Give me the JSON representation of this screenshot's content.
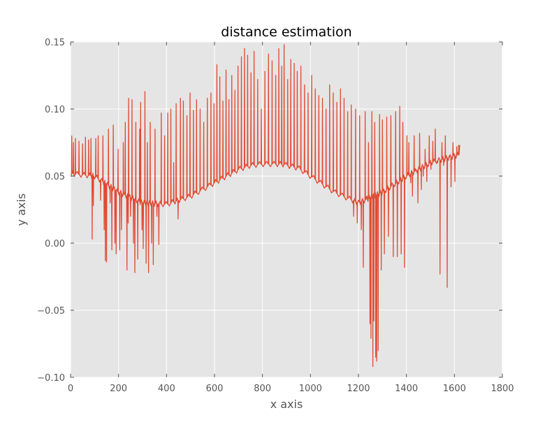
{
  "chart_data": {
    "type": "line",
    "title": "distance estimation",
    "xlabel": "x axis",
    "ylabel": "y axis",
    "xlim": [
      0,
      1800
    ],
    "ylim": [
      -0.1,
      0.15
    ],
    "x_ticks": [
      0,
      200,
      400,
      600,
      800,
      1000,
      1200,
      1400,
      1600,
      1800
    ],
    "x_tick_labels": [
      "0",
      "200",
      "400",
      "600",
      "800",
      "1000",
      "1200",
      "1400",
      "1600",
      "1800"
    ],
    "y_ticks": [
      -0.1,
      -0.05,
      0.0,
      0.05,
      0.1,
      0.15
    ],
    "y_tick_labels": [
      "−0.10",
      "−0.05",
      "0.00",
      "0.05",
      "0.10",
      "0.15"
    ],
    "grid": true,
    "legend": "none",
    "colors": {
      "series": "#E24A33",
      "plot_background": "#E5E5E5",
      "grid": "#ffffff"
    },
    "series": [
      {
        "x_start": 0,
        "x_end": 1622,
        "baseline": {
          "x": [
            0,
            100,
            200,
            300,
            400,
            500,
            600,
            700,
            750,
            800,
            880,
            950,
            1000,
            1100,
            1200,
            1300,
            1400,
            1500,
            1622
          ],
          "y": [
            0.052,
            0.05,
            0.038,
            0.03,
            0.029,
            0.035,
            0.045,
            0.055,
            0.058,
            0.059,
            0.059,
            0.056,
            0.05,
            0.038,
            0.03,
            0.038,
            0.05,
            0.06,
            0.066
          ]
        },
        "spikes": [
          {
            "x": 5,
            "y": 0.08
          },
          {
            "x": 12,
            "y": 0.075
          },
          {
            "x": 20,
            "y": 0.078
          },
          {
            "x": 35,
            "y": 0.076
          },
          {
            "x": 50,
            "y": 0.074
          },
          {
            "x": 62,
            "y": 0.079
          },
          {
            "x": 75,
            "y": 0.077
          },
          {
            "x": 85,
            "y": 0.078
          },
          {
            "x": 90,
            "y": 0.003
          },
          {
            "x": 95,
            "y": 0.028
          },
          {
            "x": 105,
            "y": 0.078
          },
          {
            "x": 115,
            "y": 0.08
          },
          {
            "x": 125,
            "y": 0.032
          },
          {
            "x": 135,
            "y": 0.08
          },
          {
            "x": 140,
            "y": 0.01
          },
          {
            "x": 145,
            "y": -0.013
          },
          {
            "x": 150,
            "y": -0.014
          },
          {
            "x": 158,
            "y": 0.085
          },
          {
            "x": 165,
            "y": 0.03
          },
          {
            "x": 172,
            "y": -0.005
          },
          {
            "x": 178,
            "y": 0.088
          },
          {
            "x": 185,
            "y": 0.0
          },
          {
            "x": 190,
            "y": -0.008
          },
          {
            "x": 198,
            "y": 0.07
          },
          {
            "x": 205,
            "y": -0.005
          },
          {
            "x": 212,
            "y": 0.01
          },
          {
            "x": 220,
            "y": 0.075
          },
          {
            "x": 228,
            "y": 0.09
          },
          {
            "x": 235,
            "y": -0.02
          },
          {
            "x": 240,
            "y": 0.015
          },
          {
            "x": 242,
            "y": 0.108
          },
          {
            "x": 250,
            "y": 0.02
          },
          {
            "x": 256,
            "y": 0.107
          },
          {
            "x": 262,
            "y": 0.0
          },
          {
            "x": 268,
            "y": -0.022
          },
          {
            "x": 272,
            "y": 0.09
          },
          {
            "x": 280,
            "y": -0.012
          },
          {
            "x": 288,
            "y": 0.085
          },
          {
            "x": 292,
            "y": 0.105
          },
          {
            "x": 298,
            "y": 0.01
          },
          {
            "x": 303,
            "y": -0.004
          },
          {
            "x": 310,
            "y": 0.113
          },
          {
            "x": 315,
            "y": -0.015
          },
          {
            "x": 320,
            "y": 0.075
          },
          {
            "x": 325,
            "y": -0.022
          },
          {
            "x": 332,
            "y": 0.09
          },
          {
            "x": 338,
            "y": 0.0
          },
          {
            "x": 345,
            "y": -0.016
          },
          {
            "x": 352,
            "y": 0.085
          },
          {
            "x": 360,
            "y": 0.02
          },
          {
            "x": 368,
            "y": -0.001
          },
          {
            "x": 378,
            "y": 0.097
          },
          {
            "x": 392,
            "y": 0.08
          },
          {
            "x": 405,
            "y": 0.097
          },
          {
            "x": 418,
            "y": 0.1
          },
          {
            "x": 430,
            "y": 0.06
          },
          {
            "x": 440,
            "y": 0.104
          },
          {
            "x": 448,
            "y": 0.018
          },
          {
            "x": 458,
            "y": 0.108
          },
          {
            "x": 470,
            "y": 0.106
          },
          {
            "x": 485,
            "y": 0.095
          },
          {
            "x": 498,
            "y": 0.112
          },
          {
            "x": 512,
            "y": 0.099
          },
          {
            "x": 525,
            "y": 0.107
          },
          {
            "x": 540,
            "y": 0.1
          },
          {
            "x": 555,
            "y": 0.09
          },
          {
            "x": 570,
            "y": 0.108
          },
          {
            "x": 585,
            "y": 0.112
          },
          {
            "x": 598,
            "y": 0.104
          },
          {
            "x": 610,
            "y": 0.133
          },
          {
            "x": 622,
            "y": 0.124
          },
          {
            "x": 635,
            "y": 0.106
          },
          {
            "x": 648,
            "y": 0.129
          },
          {
            "x": 660,
            "y": 0.107
          },
          {
            "x": 672,
            "y": 0.125
          },
          {
            "x": 685,
            "y": 0.114
          },
          {
            "x": 698,
            "y": 0.132
          },
          {
            "x": 712,
            "y": 0.139
          },
          {
            "x": 725,
            "y": 0.145
          },
          {
            "x": 738,
            "y": 0.14
          },
          {
            "x": 752,
            "y": 0.127
          },
          {
            "x": 765,
            "y": 0.143
          },
          {
            "x": 780,
            "y": 0.122
          },
          {
            "x": 795,
            "y": 0.1
          },
          {
            "x": 810,
            "y": 0.128
          },
          {
            "x": 825,
            "y": 0.141
          },
          {
            "x": 840,
            "y": 0.136
          },
          {
            "x": 855,
            "y": 0.125
          },
          {
            "x": 868,
            "y": 0.145
          },
          {
            "x": 880,
            "y": 0.132
          },
          {
            "x": 890,
            "y": 0.148
          },
          {
            "x": 905,
            "y": 0.122
          },
          {
            "x": 918,
            "y": 0.137
          },
          {
            "x": 932,
            "y": 0.134
          },
          {
            "x": 945,
            "y": 0.128
          },
          {
            "x": 960,
            "y": 0.132
          },
          {
            "x": 975,
            "y": 0.118
          },
          {
            "x": 990,
            "y": 0.112
          },
          {
            "x": 1005,
            "y": 0.125
          },
          {
            "x": 1020,
            "y": 0.115
          },
          {
            "x": 1035,
            "y": 0.11
          },
          {
            "x": 1050,
            "y": 0.108
          },
          {
            "x": 1065,
            "y": 0.1
          },
          {
            "x": 1080,
            "y": 0.118
          },
          {
            "x": 1095,
            "y": 0.112
          },
          {
            "x": 1110,
            "y": 0.105
          },
          {
            "x": 1125,
            "y": 0.115
          },
          {
            "x": 1140,
            "y": 0.108
          },
          {
            "x": 1155,
            "y": 0.098
          },
          {
            "x": 1170,
            "y": 0.103
          },
          {
            "x": 1180,
            "y": 0.02
          },
          {
            "x": 1188,
            "y": 0.1
          },
          {
            "x": 1195,
            "y": 0.015
          },
          {
            "x": 1205,
            "y": 0.095
          },
          {
            "x": 1212,
            "y": 0.01
          },
          {
            "x": 1220,
            "y": -0.018
          },
          {
            "x": 1228,
            "y": 0.098
          },
          {
            "x": 1236,
            "y": 0.035
          },
          {
            "x": 1242,
            "y": 0.075
          },
          {
            "x": 1248,
            "y": -0.06
          },
          {
            "x": 1252,
            "y": -0.071
          },
          {
            "x": 1256,
            "y": 0.098
          },
          {
            "x": 1260,
            "y": -0.092
          },
          {
            "x": 1264,
            "y": -0.058
          },
          {
            "x": 1268,
            "y": 0.09
          },
          {
            "x": 1272,
            "y": -0.085
          },
          {
            "x": 1276,
            "y": -0.088
          },
          {
            "x": 1282,
            "y": -0.08
          },
          {
            "x": 1288,
            "y": 0.096
          },
          {
            "x": 1295,
            "y": -0.02
          },
          {
            "x": 1300,
            "y": 0.092
          },
          {
            "x": 1308,
            "y": -0.008
          },
          {
            "x": 1318,
            "y": 0.094
          },
          {
            "x": 1325,
            "y": 0.005
          },
          {
            "x": 1335,
            "y": 0.095
          },
          {
            "x": 1345,
            "y": -0.01
          },
          {
            "x": 1355,
            "y": 0.098
          },
          {
            "x": 1362,
            "y": -0.01
          },
          {
            "x": 1372,
            "y": 0.102
          },
          {
            "x": 1378,
            "y": -0.008
          },
          {
            "x": 1385,
            "y": 0.09
          },
          {
            "x": 1392,
            "y": -0.018
          },
          {
            "x": 1402,
            "y": 0.08
          },
          {
            "x": 1410,
            "y": 0.075
          },
          {
            "x": 1418,
            "y": 0.045
          },
          {
            "x": 1425,
            "y": 0.035
          },
          {
            "x": 1432,
            "y": 0.08
          },
          {
            "x": 1440,
            "y": 0.055
          },
          {
            "x": 1448,
            "y": 0.03
          },
          {
            "x": 1455,
            "y": 0.082
          },
          {
            "x": 1462,
            "y": 0.04
          },
          {
            "x": 1470,
            "y": 0.05
          },
          {
            "x": 1478,
            "y": 0.07
          },
          {
            "x": 1485,
            "y": 0.046
          },
          {
            "x": 1495,
            "y": 0.08
          },
          {
            "x": 1502,
            "y": 0.055
          },
          {
            "x": 1510,
            "y": 0.076
          },
          {
            "x": 1520,
            "y": 0.085
          },
          {
            "x": 1530,
            "y": 0.06
          },
          {
            "x": 1540,
            "y": -0.023
          },
          {
            "x": 1548,
            "y": 0.075
          },
          {
            "x": 1555,
            "y": 0.058
          },
          {
            "x": 1562,
            "y": 0.08
          },
          {
            "x": 1570,
            "y": -0.033
          },
          {
            "x": 1578,
            "y": 0.065
          },
          {
            "x": 1586,
            "y": 0.042
          },
          {
            "x": 1594,
            "y": 0.075
          },
          {
            "x": 1602,
            "y": 0.046
          },
          {
            "x": 1610,
            "y": 0.072
          },
          {
            "x": 1618,
            "y": 0.073
          }
        ]
      }
    ]
  }
}
